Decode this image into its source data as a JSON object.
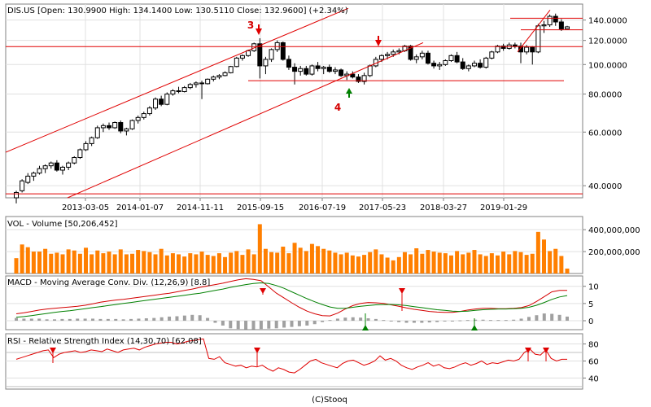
{
  "footer": "(C)Stooq",
  "colors": {
    "up_candle": "#ffffff",
    "down_candle": "#000000",
    "volume": "#ff7f00",
    "annotation": "#e00000",
    "macd_line": "#d40000",
    "signal_line": "#008000",
    "histogram": "#a0a0a0",
    "rsi_line": "#e00000",
    "buy_marker": "#008000",
    "sell_marker": "#e00000"
  },
  "chart_data": [
    {
      "type": "candlestick",
      "title": "DIS.US [Open: 130.9900  High: 134.1400  Low: 130.5110  Close: 132.9600] (+2.34%)",
      "x_tick_labels": [
        "2013-03-05",
        "2014-01-07",
        "2014-11-11",
        "2015-09-15",
        "2016-07-19",
        "2017-05-23",
        "2018-03-27",
        "2019-01-29"
      ],
      "y_tick_labels": [
        "140.0000",
        "120.0000",
        "100.0000",
        "80.0000",
        "60.0000",
        "40.0000"
      ],
      "y_ticks": [
        140,
        120,
        100,
        80,
        60,
        40
      ],
      "ylim": [
        36.5,
        158
      ],
      "y_scale": "log",
      "annotations": [
        "3",
        "4"
      ],
      "candles": [
        {
          "o": 36.5,
          "h": 38.5,
          "l": 35.0,
          "c": 38.0
        },
        {
          "o": 38.5,
          "h": 42.0,
          "l": 38.0,
          "c": 41.5
        },
        {
          "o": 41.0,
          "h": 44.0,
          "l": 40.5,
          "c": 43.0
        },
        {
          "o": 43.0,
          "h": 44.5,
          "l": 41.5,
          "c": 44.0
        },
        {
          "o": 44.0,
          "h": 46.5,
          "l": 43.5,
          "c": 45.5
        },
        {
          "o": 45.5,
          "h": 47.0,
          "l": 44.0,
          "c": 46.5
        },
        {
          "o": 46.5,
          "h": 48.0,
          "l": 45.5,
          "c": 47.5
        },
        {
          "o": 47.5,
          "h": 48.5,
          "l": 44.5,
          "c": 45.0
        },
        {
          "o": 45.0,
          "h": 46.5,
          "l": 43.5,
          "c": 46.0
        },
        {
          "o": 46.0,
          "h": 48.0,
          "l": 45.0,
          "c": 47.5
        },
        {
          "o": 47.5,
          "h": 50.0,
          "l": 47.0,
          "c": 49.5
        },
        {
          "o": 49.5,
          "h": 53.0,
          "l": 49.0,
          "c": 52.5
        },
        {
          "o": 52.5,
          "h": 56.0,
          "l": 52.0,
          "c": 55.0
        },
        {
          "o": 55.0,
          "h": 58.0,
          "l": 54.0,
          "c": 57.5
        },
        {
          "o": 57.5,
          "h": 63.0,
          "l": 57.0,
          "c": 62.0
        },
        {
          "o": 62.0,
          "h": 64.0,
          "l": 60.0,
          "c": 63.0
        },
        {
          "o": 63.0,
          "h": 64.5,
          "l": 61.0,
          "c": 62.0
        },
        {
          "o": 62.0,
          "h": 65.0,
          "l": 61.5,
          "c": 64.5
        },
        {
          "o": 64.5,
          "h": 65.5,
          "l": 59.5,
          "c": 60.5
        },
        {
          "o": 60.5,
          "h": 62.0,
          "l": 58.5,
          "c": 61.5
        },
        {
          "o": 61.5,
          "h": 66.0,
          "l": 61.0,
          "c": 65.5
        },
        {
          "o": 65.5,
          "h": 68.0,
          "l": 64.0,
          "c": 67.0
        },
        {
          "o": 67.0,
          "h": 70.0,
          "l": 66.0,
          "c": 69.0
        },
        {
          "o": 69.0,
          "h": 73.0,
          "l": 68.0,
          "c": 72.0
        },
        {
          "o": 72.0,
          "h": 78.0,
          "l": 71.0,
          "c": 77.0
        },
        {
          "o": 77.0,
          "h": 79.0,
          "l": 73.0,
          "c": 74.0
        },
        {
          "o": 74.0,
          "h": 81.0,
          "l": 73.5,
          "c": 80.0
        },
        {
          "o": 80.0,
          "h": 83.0,
          "l": 79.0,
          "c": 82.0
        },
        {
          "o": 82.0,
          "h": 84.5,
          "l": 80.5,
          "c": 81.5
        },
        {
          "o": 81.5,
          "h": 85.0,
          "l": 81.0,
          "c": 84.0
        },
        {
          "o": 84.0,
          "h": 87.0,
          "l": 83.0,
          "c": 86.0
        },
        {
          "o": 86.0,
          "h": 88.0,
          "l": 84.0,
          "c": 87.0
        },
        {
          "o": 87.0,
          "h": 88.5,
          "l": 77.0,
          "c": 86.5
        },
        {
          "o": 86.5,
          "h": 90.0,
          "l": 86.0,
          "c": 89.5
        },
        {
          "o": 89.5,
          "h": 92.0,
          "l": 88.0,
          "c": 91.0
        },
        {
          "o": 91.0,
          "h": 93.0,
          "l": 89.5,
          "c": 92.0
        },
        {
          "o": 92.0,
          "h": 95.0,
          "l": 91.5,
          "c": 94.0
        },
        {
          "o": 94.0,
          "h": 99.0,
          "l": 93.5,
          "c": 98.5
        },
        {
          "o": 98.5,
          "h": 106.0,
          "l": 98.0,
          "c": 105.0
        },
        {
          "o": 105.0,
          "h": 108.0,
          "l": 103.0,
          "c": 107.0
        },
        {
          "o": 107.0,
          "h": 112.0,
          "l": 106.0,
          "c": 111.0
        },
        {
          "o": 111.0,
          "h": 118.0,
          "l": 110.0,
          "c": 117.0
        },
        {
          "o": 117.0,
          "h": 122.0,
          "l": 90.0,
          "c": 99.0
        },
        {
          "o": 99.0,
          "h": 106.0,
          "l": 93.0,
          "c": 104.0
        },
        {
          "o": 104.0,
          "h": 113.0,
          "l": 102.0,
          "c": 112.0
        },
        {
          "o": 112.0,
          "h": 120.0,
          "l": 110.0,
          "c": 118.0
        },
        {
          "o": 118.0,
          "h": 119.0,
          "l": 103.0,
          "c": 104.0
        },
        {
          "o": 104.0,
          "h": 107.0,
          "l": 96.0,
          "c": 98.0
        },
        {
          "o": 98.0,
          "h": 101.0,
          "l": 86.0,
          "c": 95.0
        },
        {
          "o": 95.0,
          "h": 99.0,
          "l": 92.0,
          "c": 97.0
        },
        {
          "o": 97.0,
          "h": 99.0,
          "l": 92.0,
          "c": 93.0
        },
        {
          "o": 93.0,
          "h": 100.0,
          "l": 92.0,
          "c": 99.0
        },
        {
          "o": 99.0,
          "h": 102.0,
          "l": 95.0,
          "c": 97.0
        },
        {
          "o": 97.0,
          "h": 99.0,
          "l": 93.0,
          "c": 98.0
        },
        {
          "o": 98.0,
          "h": 100.0,
          "l": 94.0,
          "c": 95.0
        },
        {
          "o": 95.0,
          "h": 98.0,
          "l": 93.0,
          "c": 96.0
        },
        {
          "o": 96.0,
          "h": 97.0,
          "l": 91.0,
          "c": 92.0
        },
        {
          "o": 92.0,
          "h": 95.0,
          "l": 89.0,
          "c": 93.0
        },
        {
          "o": 93.0,
          "h": 95.0,
          "l": 90.0,
          "c": 91.0
        },
        {
          "o": 91.0,
          "h": 93.0,
          "l": 87.0,
          "c": 88.0
        },
        {
          "o": 88.0,
          "h": 94.0,
          "l": 86.0,
          "c": 92.0
        },
        {
          "o": 92.0,
          "h": 100.0,
          "l": 91.0,
          "c": 99.0
        },
        {
          "o": 99.0,
          "h": 106.0,
          "l": 98.0,
          "c": 104.0
        },
        {
          "o": 104.0,
          "h": 108.0,
          "l": 102.0,
          "c": 107.0
        },
        {
          "o": 107.0,
          "h": 110.0,
          "l": 104.0,
          "c": 108.0
        },
        {
          "o": 108.0,
          "h": 112.0,
          "l": 106.0,
          "c": 110.0
        },
        {
          "o": 110.0,
          "h": 113.0,
          "l": 108.0,
          "c": 111.0
        },
        {
          "o": 111.0,
          "h": 116.0,
          "l": 110.0,
          "c": 115.0
        },
        {
          "o": 115.0,
          "h": 116.0,
          "l": 103.0,
          "c": 104.0
        },
        {
          "o": 104.0,
          "h": 108.0,
          "l": 101.0,
          "c": 106.0
        },
        {
          "o": 106.0,
          "h": 111.0,
          "l": 104.0,
          "c": 109.0
        },
        {
          "o": 109.0,
          "h": 111.0,
          "l": 100.0,
          "c": 101.0
        },
        {
          "o": 101.0,
          "h": 103.0,
          "l": 97.0,
          "c": 99.0
        },
        {
          "o": 99.0,
          "h": 102.0,
          "l": 96.0,
          "c": 100.0
        },
        {
          "o": 100.0,
          "h": 104.0,
          "l": 99.0,
          "c": 103.0
        },
        {
          "o": 103.0,
          "h": 108.0,
          "l": 102.0,
          "c": 107.0
        },
        {
          "o": 107.0,
          "h": 110.0,
          "l": 101.0,
          "c": 102.0
        },
        {
          "o": 102.0,
          "h": 105.0,
          "l": 96.0,
          "c": 97.0
        },
        {
          "o": 97.0,
          "h": 100.0,
          "l": 95.0,
          "c": 99.0
        },
        {
          "o": 99.0,
          "h": 103.0,
          "l": 98.0,
          "c": 101.0
        },
        {
          "o": 101.0,
          "h": 104.0,
          "l": 97.0,
          "c": 98.0
        },
        {
          "o": 98.0,
          "h": 106.0,
          "l": 97.0,
          "c": 105.0
        },
        {
          "o": 105.0,
          "h": 111.0,
          "l": 104.0,
          "c": 110.0
        },
        {
          "o": 110.0,
          "h": 116.0,
          "l": 109.0,
          "c": 115.0
        },
        {
          "o": 115.0,
          "h": 117.0,
          "l": 111.0,
          "c": 113.0
        },
        {
          "o": 113.0,
          "h": 118.0,
          "l": 112.0,
          "c": 116.0
        },
        {
          "o": 116.0,
          "h": 118.0,
          "l": 113.0,
          "c": 115.0
        },
        {
          "o": 115.0,
          "h": 118.0,
          "l": 101.0,
          "c": 110.0
        },
        {
          "o": 110.0,
          "h": 116.0,
          "l": 108.0,
          "c": 114.0
        },
        {
          "o": 114.0,
          "h": 115.0,
          "l": 100.0,
          "c": 110.0
        },
        {
          "o": 110.0,
          "h": 136.0,
          "l": 109.0,
          "c": 134.0
        },
        {
          "o": 134.0,
          "h": 139.0,
          "l": 127.0,
          "c": 135.0
        },
        {
          "o": 135.0,
          "h": 146.0,
          "l": 133.0,
          "c": 144.0
        },
        {
          "o": 144.0,
          "h": 147.0,
          "l": 134.0,
          "c": 138.0
        },
        {
          "o": 138.0,
          "h": 141.0,
          "l": 129.0,
          "c": 131.0
        },
        {
          "o": 131.0,
          "h": 134.0,
          "l": 130.5,
          "c": 133.0
        }
      ]
    },
    {
      "type": "bar",
      "title": "VOL - Volume [50,206,452]",
      "y_tick_labels": [
        "400,000,000",
        "200,000,000"
      ],
      "y_ticks": [
        400000000,
        200000000
      ],
      "ylim": [
        0,
        520000000
      ],
      "values": [
        140000000.0,
        265000000.0,
        240000000.0,
        200000000.0,
        200000000.0,
        225000000.0,
        180000000.0,
        190000000.0,
        175000000.0,
        220000000.0,
        210000000.0,
        180000000.0,
        235000000.0,
        175000000.0,
        210000000.0,
        185000000.0,
        200000000.0,
        175000000.0,
        220000000.0,
        175000000.0,
        180000000.0,
        215000000.0,
        205000000.0,
        195000000.0,
        175000000.0,
        225000000.0,
        165000000.0,
        185000000.0,
        175000000.0,
        155000000.0,
        185000000.0,
        175000000.0,
        200000000.0,
        170000000.0,
        160000000.0,
        185000000.0,
        150000000.0,
        190000000.0,
        205000000.0,
        170000000.0,
        220000000.0,
        175000000.0,
        450000000.0,
        225000000.0,
        195000000.0,
        190000000.0,
        245000000.0,
        185000000.0,
        280000000.0,
        235000000.0,
        205000000.0,
        270000000.0,
        250000000.0,
        225000000.0,
        210000000.0,
        190000000.0,
        175000000.0,
        190000000.0,
        165000000.0,
        155000000.0,
        170000000.0,
        195000000.0,
        220000000.0,
        175000000.0,
        145000000.0,
        120000000.0,
        150000000.0,
        195000000.0,
        175000000.0,
        230000000.0,
        180000000.0,
        215000000.0,
        200000000.0,
        190000000.0,
        185000000.0,
        165000000.0,
        205000000.0,
        175000000.0,
        190000000.0,
        215000000.0,
        175000000.0,
        160000000.0,
        185000000.0,
        165000000.0,
        200000000.0,
        175000000.0,
        205000000.0,
        195000000.0,
        170000000.0,
        180000000.0,
        380000000.0,
        310000000.0,
        205000000.0,
        225000000.0,
        160000000.0,
        45000000.0
      ]
    },
    {
      "type": "line",
      "title": "MACD - Moving Average Conv. Div. (12,26,9) [8.8]",
      "y_tick_labels": [
        "10",
        "5",
        "0"
      ],
      "y_ticks": [
        10,
        5,
        0
      ],
      "ylim": [
        -2.6,
        13.0
      ],
      "series": [
        {
          "values": [
            2.0,
            2.3,
            2.7,
            3.1,
            3.4,
            3.6,
            3.8,
            4.0,
            4.2,
            4.5,
            4.9,
            5.4,
            5.7,
            6.0,
            6.2,
            6.5,
            6.8,
            7.1,
            7.4,
            7.7,
            8.0,
            8.4,
            8.8,
            9.2,
            9.7,
            10.1,
            10.5,
            10.9,
            11.4,
            11.9,
            12.2,
            12.0,
            11.6,
            9.8,
            8.0,
            6.6,
            5.2,
            3.9,
            2.8,
            2.0,
            1.5,
            1.4,
            2.2,
            3.4,
            4.4,
            5.0,
            5.3,
            5.2,
            5.0,
            4.6,
            4.2,
            3.7,
            3.3,
            3.0,
            2.7,
            2.5,
            2.4,
            2.4,
            2.7,
            3.1,
            3.4,
            3.6,
            3.6,
            3.5,
            3.5,
            3.6,
            3.8,
            4.4,
            5.6,
            7.0,
            8.4,
            8.8,
            8.8
          ]
        },
        {
          "values": [
            1.0,
            1.2,
            1.5,
            1.8,
            2.1,
            2.4,
            2.7,
            2.9,
            3.2,
            3.5,
            3.8,
            4.1,
            4.4,
            4.7,
            5.0,
            5.3,
            5.6,
            5.9,
            6.2,
            6.5,
            6.8,
            7.1,
            7.4,
            7.7,
            8.0,
            8.4,
            8.8,
            9.2,
            9.7,
            10.1,
            10.5,
            10.8,
            11.0,
            10.8,
            10.2,
            9.4,
            8.4,
            7.4,
            6.4,
            5.5,
            4.7,
            4.0,
            3.6,
            3.6,
            3.9,
            4.2,
            4.4,
            4.6,
            4.7,
            4.7,
            4.6,
            4.4,
            4.1,
            3.8,
            3.5,
            3.2,
            3.0,
            2.8,
            2.7,
            2.8,
            3.0,
            3.2,
            3.3,
            3.4,
            3.4,
            3.5,
            3.6,
            3.9,
            4.5,
            5.3,
            6.2,
            6.9,
            7.3
          ]
        }
      ],
      "histogram": [
        0.8,
        0.6,
        0.6,
        0.6,
        0.4,
        0.4,
        0.5,
        0.5,
        0.6,
        0.6,
        0.6,
        0.5,
        0.5,
        0.5,
        0.4,
        0.5,
        0.6,
        0.7,
        0.8,
        1.0,
        1.2,
        1.3,
        1.5,
        1.7,
        1.6,
        0.8,
        -0.6,
        -1.4,
        -2.2,
        -2.4,
        -2.5,
        -2.5,
        -2.4,
        -2.3,
        -2.2,
        -2.0,
        -1.8,
        -1.6,
        -1.4,
        -1.0,
        -0.4,
        0.2,
        0.6,
        0.9,
        1.0,
        0.9,
        0.7,
        0.5,
        0.2,
        -0.1,
        -0.4,
        -0.6,
        -0.6,
        -0.6,
        -0.5,
        -0.4,
        -0.2,
        0.0,
        0.1,
        0.2,
        0.3,
        0.3,
        0.2,
        0.2,
        0.2,
        0.3,
        0.6,
        1.1,
        1.6,
        2.1,
        2.0,
        1.7,
        1.2
      ]
    },
    {
      "type": "line",
      "title": "RSI - Relative Strength Index (14,30,70) [62.08]",
      "y_tick_labels": [
        "80",
        "60",
        "40"
      ],
      "y_ticks": [
        80,
        60,
        40
      ],
      "ylim": [
        27,
        92
      ],
      "series": [
        {
          "values": [
            62,
            64,
            66,
            68,
            70,
            72,
            73,
            64,
            68,
            70,
            71,
            72,
            70,
            71,
            73,
            72,
            71,
            74,
            72,
            70,
            73,
            74,
            75,
            73,
            76,
            78,
            80,
            81,
            82,
            82,
            80,
            81,
            83,
            84,
            85,
            86,
            63,
            62,
            65,
            58,
            56,
            54,
            55,
            52,
            54,
            53,
            55,
            51,
            48,
            52,
            50,
            47,
            46,
            50,
            55,
            60,
            62,
            58,
            56,
            54,
            52,
            57,
            60,
            61,
            58,
            55,
            57,
            60,
            66,
            61,
            63,
            60,
            55,
            52,
            50,
            53,
            55,
            58,
            54,
            56,
            52,
            51,
            53,
            56,
            58,
            55,
            57,
            60,
            56,
            58,
            57,
            59,
            61,
            60,
            62,
            70,
            74,
            68,
            67,
            73,
            63,
            60,
            62,
            62
          ]
        }
      ]
    }
  ]
}
